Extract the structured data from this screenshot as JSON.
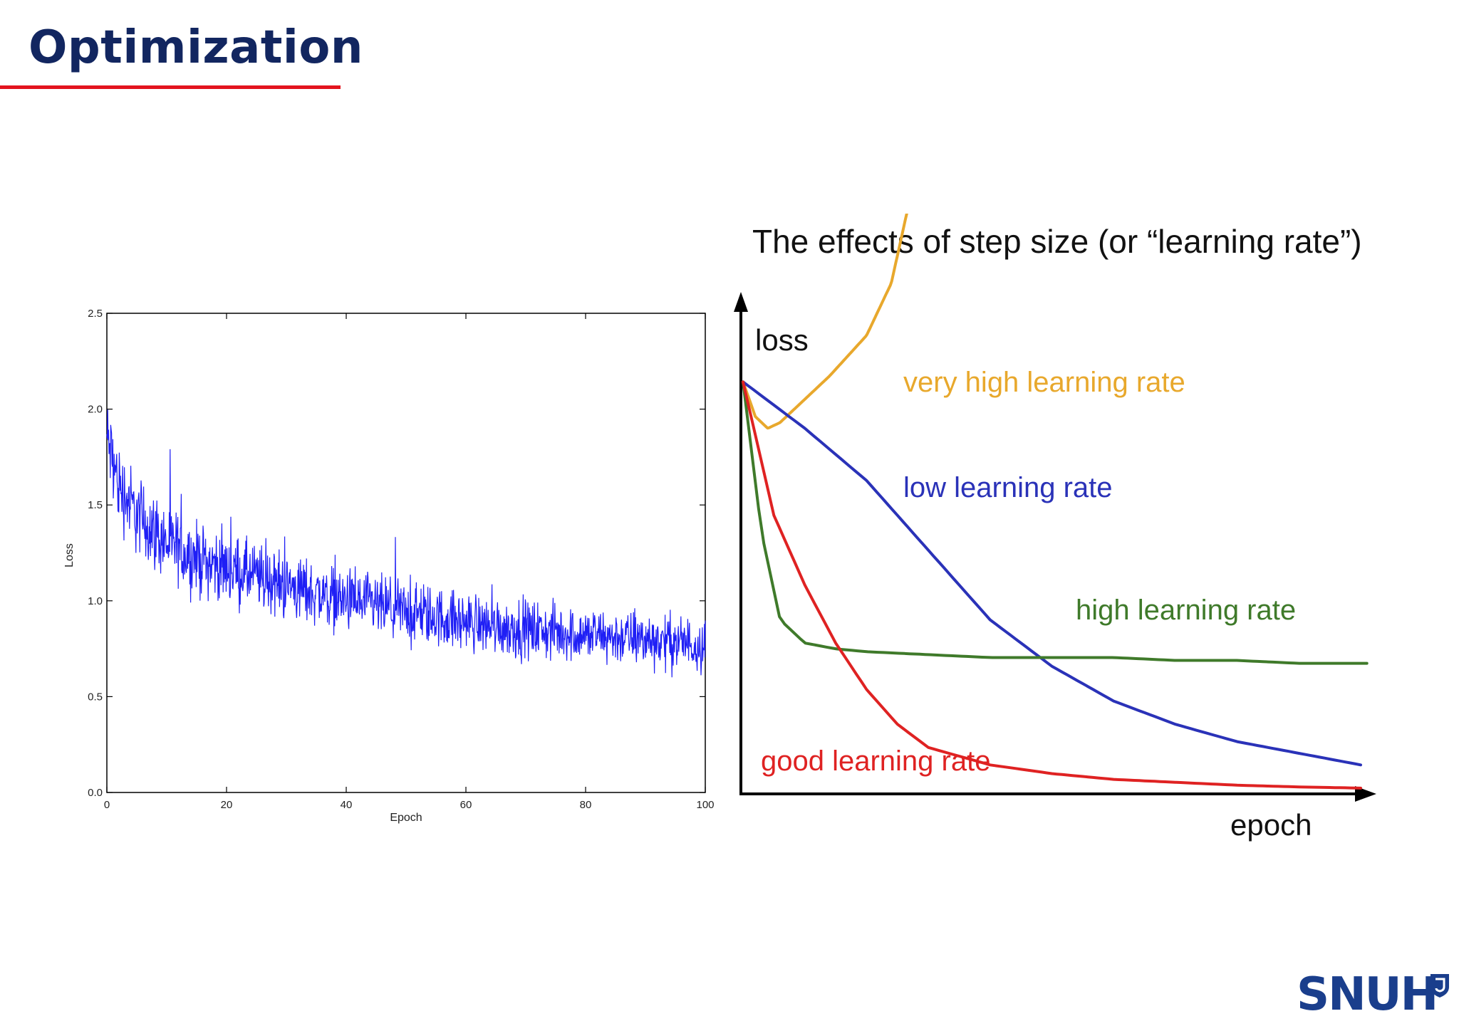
{
  "slide": {
    "title": "Optimization",
    "logo_text": "SNUH"
  },
  "colors": {
    "title": "#122660",
    "rule": "#e3141e",
    "noisy": "#1f1ff5",
    "very_high": "#e8a82c",
    "low": "#2a32b8",
    "high": "#3f7a2a",
    "good": "#df2222"
  },
  "chart_data": [
    {
      "type": "line",
      "title": "",
      "xlabel": "Epoch",
      "ylabel": "Loss",
      "xlim": [
        0,
        100
      ],
      "ylim": [
        0.0,
        2.5
      ],
      "xticks": [
        0,
        20,
        40,
        60,
        80,
        100
      ],
      "xtick_labels": [
        "0",
        "20",
        "40",
        "60",
        "80",
        "100"
      ],
      "yticks": [
        0.0,
        0.5,
        1.0,
        1.5,
        2.0,
        2.5
      ],
      "ytick_labels": [
        "0.0",
        "0.5",
        "1.0",
        "1.5",
        "2.0",
        "2.5"
      ],
      "grid": false,
      "series": [
        {
          "x": [
            0,
            2,
            5,
            10,
            15,
            20,
            30,
            40,
            50,
            60,
            70,
            80,
            90,
            100
          ],
          "y": [
            1.85,
            1.6,
            1.45,
            1.3,
            1.22,
            1.17,
            1.08,
            1.0,
            0.94,
            0.89,
            0.85,
            0.82,
            0.8,
            0.77
          ],
          "noise_band": [
            0.2,
            0.2,
            0.19,
            0.18,
            0.17,
            0.16,
            0.16,
            0.15,
            0.15,
            0.14,
            0.14,
            0.13,
            0.13,
            0.13
          ]
        }
      ]
    },
    {
      "type": "line",
      "title": "The effects of step size (or “learning rate”)",
      "xlabel": "epoch",
      "ylabel": "loss",
      "xlim": [
        0,
        100
      ],
      "ylim": [
        0,
        100
      ],
      "axis_ticks": false,
      "series": [
        {
          "name": "very high learning rate",
          "x": [
            0,
            2,
            4,
            6,
            9,
            14,
            20,
            24,
            26.5
          ],
          "y": [
            71,
            65,
            63,
            64,
            67,
            72,
            79,
            88,
            100
          ]
        },
        {
          "name": "low learning rate",
          "x": [
            0,
            10,
            20,
            30,
            40,
            50,
            60,
            70,
            80,
            90,
            100
          ],
          "y": [
            71,
            63,
            54,
            42,
            30,
            22,
            16,
            12,
            9,
            7,
            5
          ]
        },
        {
          "name": "high learning rate",
          "x": [
            0,
            3,
            6,
            10,
            15,
            20,
            30,
            40,
            50,
            60,
            70,
            80,
            90,
            101
          ],
          "y": [
            71,
            45,
            30,
            26,
            25,
            24.5,
            24,
            23.5,
            23.5,
            23.5,
            23,
            23,
            22.5,
            22.5
          ]
        },
        {
          "name": "good learning rate",
          "x": [
            0,
            5,
            10,
            15,
            20,
            25,
            30,
            40,
            50,
            60,
            70,
            80,
            90,
            100
          ],
          "y": [
            71,
            48,
            36,
            26,
            18,
            12,
            8,
            5,
            3.5,
            2.5,
            2,
            1.5,
            1.2,
            1
          ]
        }
      ]
    }
  ]
}
